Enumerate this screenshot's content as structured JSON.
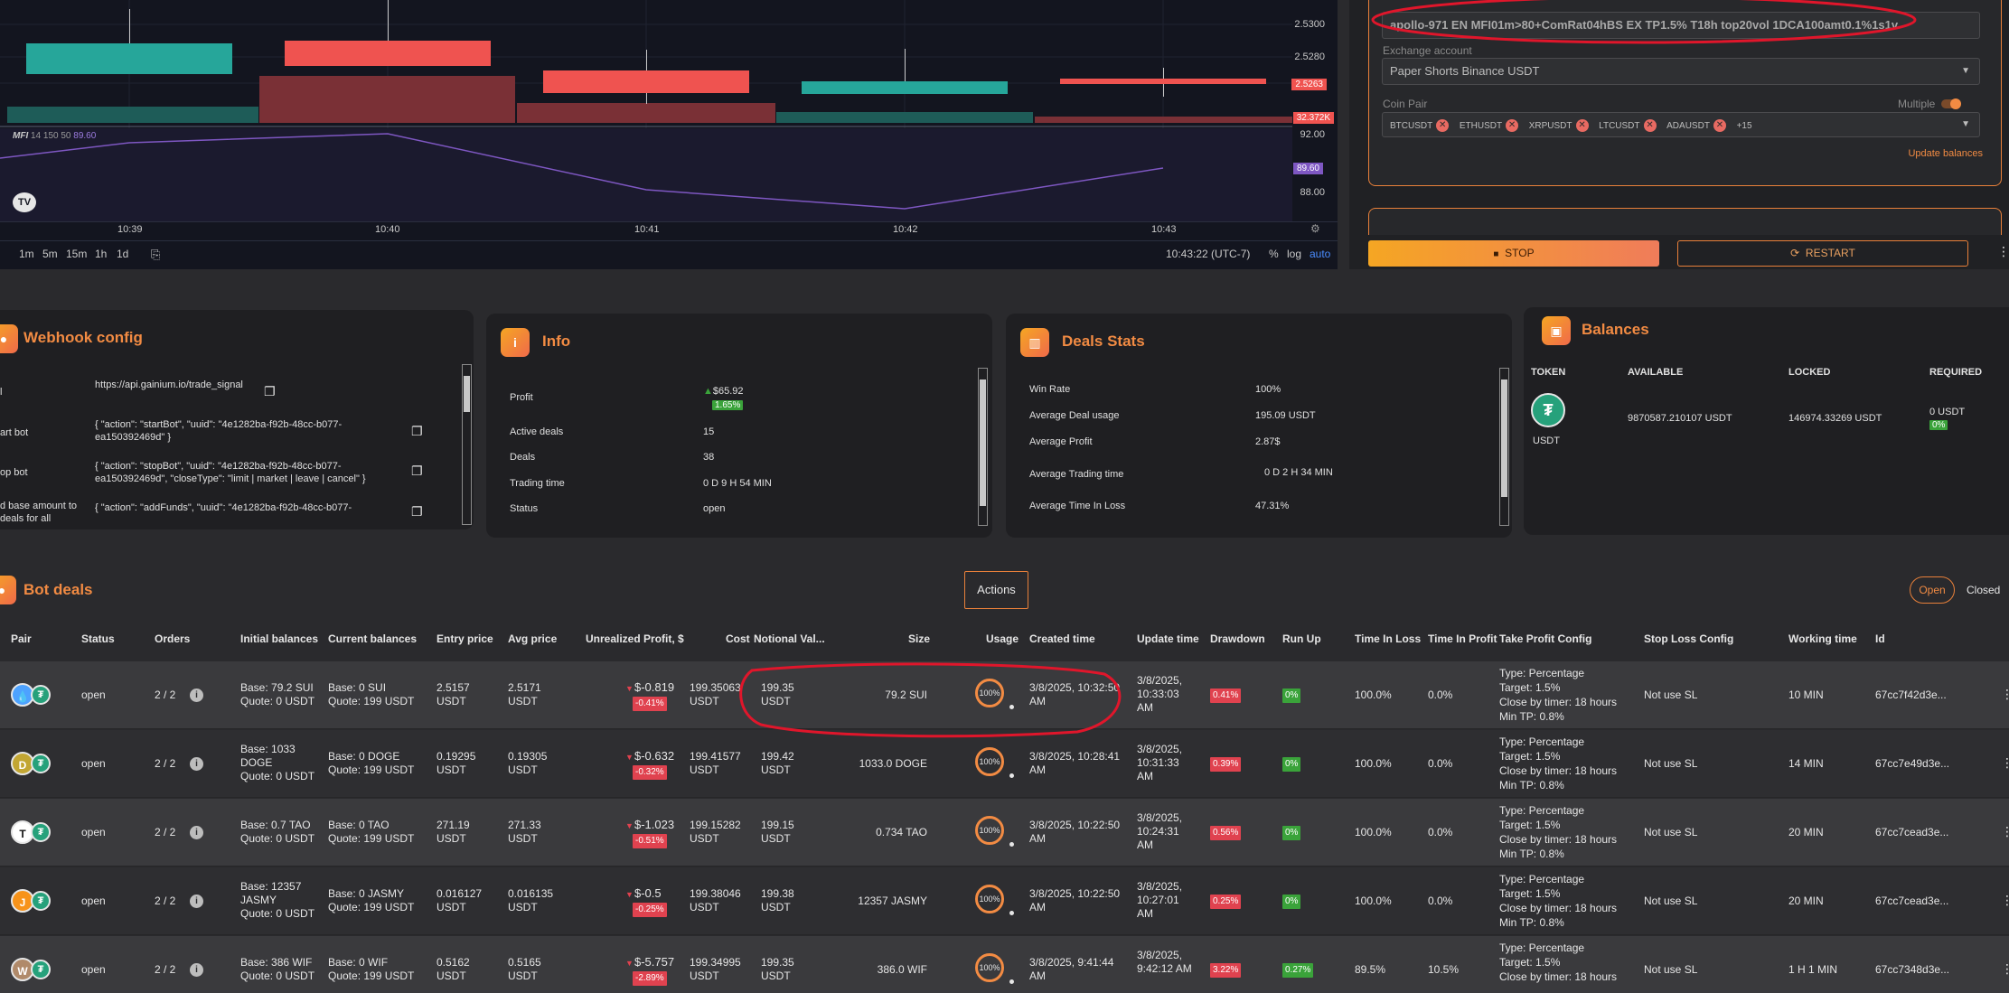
{
  "chart": {
    "indicator_label": "MFI",
    "indicator_params": "14 150 50",
    "indicator_value": "89.60",
    "price_axis": [
      "2.5300",
      "2.5280",
      "2.5263",
      "32.372K",
      "92.00",
      "89.60",
      "88.00"
    ],
    "time_labels": [
      "10:39",
      "10:40",
      "10:41",
      "10:42",
      "10:43"
    ],
    "timeframes": [
      "1m",
      "5m",
      "15m",
      "1h",
      "1d"
    ],
    "clock": "10:43:22 (UTC-7)",
    "scale_buttons": [
      "%",
      "log",
      "auto"
    ],
    "colors": {
      "up": "#26a69a",
      "down": "#ef5350"
    }
  },
  "config": {
    "name_value": "apollo-971 EN MFI01m>80+ComRat04hBS EX TP1.5% T18h top20vol 1DCA100amt0.1%1s1v",
    "exchange_label": "Exchange account",
    "exchange_value": "Paper Shorts Binance USDT",
    "coin_pair_label": "Coin Pair",
    "multiple_label": "Multiple",
    "coins": [
      "BTCUSDT",
      "ETHUSDT",
      "XRPUSDT",
      "LTCUSDT",
      "ADAUSDT"
    ],
    "more_coins": "+15",
    "update_balances": "Update balances",
    "stop_label": "STOP",
    "restart_label": "RESTART"
  },
  "webhook": {
    "title": "Webhook config",
    "rows": [
      {
        "label": "l",
        "value": "https://api.gainium.io/trade_signal"
      },
      {
        "label": "art bot",
        "value": "{ \"action\": \"startBot\", \"uuid\": \"4e1282ba-f92b-48cc-b077-ea150392469d\" }"
      },
      {
        "label": "op bot",
        "value": "{ \"action\": \"stopBot\", \"uuid\": \"4e1282ba-f92b-48cc-b077-ea150392469d\", \"closeType\": \"limit | market | leave | cancel\" }"
      },
      {
        "label": "d base amount to deals for all",
        "value": "{ \"action\": \"addFunds\", \"uuid\": \"4e1282ba-f92b-48cc-b077-"
      }
    ]
  },
  "info": {
    "title": "Info",
    "profit_label": "Profit",
    "profit_value": "$65.92",
    "profit_pct": "1.65%",
    "active_label": "Active deals",
    "active_value": "15",
    "deals_label": "Deals",
    "deals_value": "38",
    "trading_label": "Trading time",
    "trading_value": "0 D 9 H 54 MIN",
    "status_label": "Status",
    "status_value": "open"
  },
  "stats": {
    "title": "Deals Stats",
    "rows": [
      {
        "label": "Win Rate",
        "value": "100%"
      },
      {
        "label": "Average Deal usage",
        "value": "195.09 USDT"
      },
      {
        "label": "Average Profit",
        "value": "2.87$"
      },
      {
        "label": "Average Trading time",
        "value": "0 D 2 H 34 MIN"
      },
      {
        "label": "Average Time In Loss",
        "value": "47.31%"
      }
    ]
  },
  "balances": {
    "title": "Balances",
    "headers": [
      "TOKEN",
      "AVAILABLE",
      "LOCKED",
      "REQUIRED"
    ],
    "token": "USDT",
    "available": "9870587.210107 USDT",
    "locked": "146974.33269 USDT",
    "required": "0 USDT",
    "required_pct": "0%"
  },
  "deals": {
    "title": "Bot deals",
    "actions_label": "Actions",
    "tab_open": "Open",
    "tab_closed": "Closed",
    "headers": [
      "Pair",
      "Status",
      "Orders",
      "Initial balances",
      "Current balances",
      "Entry price",
      "Avg price",
      "Unrealized Profit, $",
      "Cost",
      "Notional Val...",
      "Size",
      "Usage",
      "Created time",
      "Update time",
      "Drawdown",
      "Run Up",
      "Time In Loss",
      "Time In Profit",
      "Take Profit Config",
      "Stop Loss Config",
      "Working time",
      "Id"
    ],
    "rows": [
      {
        "coin_color": "#4da2ff",
        "coin_glyph": "💧",
        "status": "open",
        "orders": "2 / 2",
        "init1": "Base: 79.2 SUI",
        "init2": "Quote: 0 USDT",
        "cur1": "Base: 0 SUI",
        "cur2": "Quote: 199 USDT",
        "entry1": "2.5157",
        "entry2": "USDT",
        "avg1": "2.5171",
        "avg2": "USDT",
        "upnl": "$-0.819",
        "upnl_pct": "-0.41%",
        "cost": "199.35063",
        "cost2": "USDT",
        "notional1": "199.35",
        "notional2": "USDT",
        "size": "79.2 SUI",
        "usage": "100%",
        "created1": "3/8/2025, 10:32:50",
        "created2": "AM",
        "upd1": "3/8/2025,",
        "upd2": "10:33:03",
        "upd3": "AM",
        "drawdown": "0.41%",
        "runup": "0%",
        "til": "100.0%",
        "tip": "0.0%",
        "tp1": "Type: Percentage",
        "tp2": "Target: 1.5%",
        "tp3": "Close by timer: 18 hours",
        "tp4": "Min TP: 0.8%",
        "sl": "Not use SL",
        "work": "10 MIN",
        "id": "67cc7f42d3e..."
      },
      {
        "coin_color": "#c2a633",
        "coin_glyph": "D",
        "status": "open",
        "orders": "2 / 2",
        "init1": "Base: 1033",
        "init2": "DOGE",
        "init3": "Quote: 0 USDT",
        "cur1": "Base: 0 DOGE",
        "cur2": "Quote: 199 USDT",
        "entry1": "0.19295",
        "entry2": "USDT",
        "avg1": "0.19305",
        "avg2": "USDT",
        "upnl": "$-0.632",
        "upnl_pct": "-0.32%",
        "cost": "199.41577",
        "cost2": "USDT",
        "notional1": "199.42",
        "notional2": "USDT",
        "size": "1033.0 DOGE",
        "usage": "100%",
        "created1": "3/8/2025, 10:28:41",
        "created2": "AM",
        "upd1": "3/8/2025,",
        "upd2": "10:31:33",
        "upd3": "AM",
        "drawdown": "0.39%",
        "runup": "0%",
        "til": "100.0%",
        "tip": "0.0%",
        "tp1": "Type: Percentage",
        "tp2": "Target: 1.5%",
        "tp3": "Close by timer: 18 hours",
        "tp4": "Min TP: 0.8%",
        "sl": "Not use SL",
        "work": "14 MIN",
        "id": "67cc7e49d3e..."
      },
      {
        "coin_color": "#ffffff",
        "coin_glyph": "T",
        "status": "open",
        "orders": "2 / 2",
        "init1": "Base: 0.7 TAO",
        "init2": "Quote: 0 USDT",
        "cur1": "Base: 0 TAO",
        "cur2": "Quote: 199 USDT",
        "entry1": "271.19",
        "entry2": "USDT",
        "avg1": "271.33",
        "avg2": "USDT",
        "upnl": "$-1.023",
        "upnl_pct": "-0.51%",
        "cost": "199.15282",
        "cost2": "USDT",
        "notional1": "199.15",
        "notional2": "USDT",
        "size": "0.734 TAO",
        "usage": "100%",
        "created1": "3/8/2025, 10:22:50",
        "created2": "AM",
        "upd1": "3/8/2025,",
        "upd2": "10:24:31",
        "upd3": "AM",
        "drawdown": "0.56%",
        "runup": "0%",
        "til": "100.0%",
        "tip": "0.0%",
        "tp1": "Type: Percentage",
        "tp2": "Target: 1.5%",
        "tp3": "Close by timer: 18 hours",
        "tp4": "Min TP: 0.8%",
        "sl": "Not use SL",
        "work": "20 MIN",
        "id": "67cc7cead3e..."
      },
      {
        "coin_color": "#f7931a",
        "coin_glyph": "J",
        "status": "open",
        "orders": "2 / 2",
        "init1": "Base: 12357",
        "init2": "JASMY",
        "init3": "Quote: 0 USDT",
        "cur1": "Base: 0 JASMY",
        "cur2": "Quote: 199 USDT",
        "entry1": "0.016127",
        "entry2": "USDT",
        "avg1": "0.016135",
        "avg2": "USDT",
        "upnl": "$-0.5",
        "upnl_pct": "-0.25%",
        "cost": "199.38046",
        "cost2": "USDT",
        "notional1": "199.38",
        "notional2": "USDT",
        "size": "12357 JASMY",
        "usage": "100%",
        "created1": "3/8/2025, 10:22:50",
        "created2": "AM",
        "upd1": "3/8/2025,",
        "upd2": "10:27:01",
        "upd3": "AM",
        "drawdown": "0.25%",
        "runup": "0%",
        "til": "100.0%",
        "tip": "0.0%",
        "tp1": "Type: Percentage",
        "tp2": "Target: 1.5%",
        "tp3": "Close by timer: 18 hours",
        "tp4": "Min TP: 0.8%",
        "sl": "Not use SL",
        "work": "20 MIN",
        "id": "67cc7cead3e..."
      },
      {
        "coin_color": "#b08a6a",
        "coin_glyph": "W",
        "status": "open",
        "orders": "2 / 2",
        "init1": "Base: 386 WIF",
        "init2": "Quote: 0 USDT",
        "cur1": "Base: 0 WIF",
        "cur2": "Quote: 199 USDT",
        "entry1": "0.5162",
        "entry2": "USDT",
        "avg1": "0.5165",
        "avg2": "USDT",
        "upnl": "$-5.757",
        "upnl_pct": "-2.89%",
        "cost": "199.34995",
        "cost2": "USDT",
        "notional1": "199.35",
        "notional2": "USDT",
        "size": "386.0 WIF",
        "usage": "100%",
        "created1": "3/8/2025, 9:41:44",
        "created2": "AM",
        "upd1": "3/8/2025,",
        "upd2": "9:42:12 AM",
        "upd3": "",
        "drawdown": "3.22%",
        "runup": "0.27%",
        "til": "89.5%",
        "tip": "10.5%",
        "tp1": "Type: Percentage",
        "tp2": "Target: 1.5%",
        "tp3": "Close by timer: 18 hours",
        "tp4": "",
        "sl": "Not use SL",
        "work": "1 H 1 MIN",
        "id": "67cc7348d3e..."
      }
    ]
  }
}
